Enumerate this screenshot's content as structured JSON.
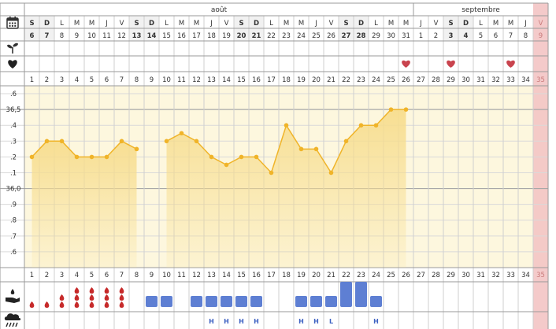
{
  "months": [
    {
      "label": "août"
    },
    {
      "label": "septembre"
    }
  ],
  "weekday_letters": [
    "S",
    "D",
    "L",
    "M",
    "M",
    "J",
    "V",
    "S",
    "D",
    "L",
    "M",
    "M",
    "J",
    "V",
    "S",
    "D",
    "L",
    "M",
    "M",
    "J",
    "V",
    "S",
    "D",
    "L",
    "M",
    "M",
    "J",
    "V",
    "S",
    "D",
    "L",
    "M",
    "M",
    "J",
    "V"
  ],
  "dates": [
    "6",
    "7",
    "8",
    "9",
    "10",
    "11",
    "12",
    "13",
    "14",
    "15",
    "16",
    "17",
    "18",
    "19",
    "20",
    "21",
    "22",
    "23",
    "24",
    "25",
    "26",
    "27",
    "28",
    "29",
    "30",
    "31",
    "1",
    "2",
    "3",
    "4",
    "5",
    "6",
    "7",
    "8",
    "9"
  ],
  "cycle_days": [
    "1",
    "2",
    "3",
    "4",
    "5",
    "6",
    "7",
    "8",
    "9",
    "10",
    "11",
    "12",
    "13",
    "14",
    "15",
    "16",
    "17",
    "18",
    "19",
    "20",
    "21",
    "22",
    "23",
    "24",
    "25",
    "26",
    "27",
    "28",
    "29",
    "30",
    "31",
    "32",
    "33",
    "34",
    "35"
  ],
  "hearts_on_days": [
    26,
    29,
    33
  ],
  "row_icons": {
    "calendar": "calendar-icon",
    "plant": "sprout-icon",
    "heart": "heart-icon",
    "bleeding": "hand-drop-icon",
    "mucus": "cloud-rain-icon"
  },
  "temperature_axis": {
    "labels": [
      ".6",
      "36,5",
      ".4",
      ".3",
      ".2",
      ".1",
      "36,0",
      ".9",
      ".8",
      ".7",
      ".6"
    ],
    "values": [
      36.6,
      36.5,
      36.4,
      36.3,
      36.2,
      36.1,
      36.0,
      35.9,
      35.8,
      35.7,
      35.6
    ],
    "min": 35.5,
    "max": 36.65
  },
  "chart_data": {
    "type": "line",
    "x": [
      1,
      2,
      3,
      4,
      5,
      6,
      7,
      8,
      10,
      11,
      12,
      13,
      14,
      15,
      16,
      17,
      18,
      19,
      20,
      21,
      22,
      23,
      24,
      25,
      26
    ],
    "series": [
      {
        "values": [
          36.2,
          36.3,
          36.3,
          36.2,
          36.2,
          36.2,
          36.3,
          36.25,
          36.3,
          36.35,
          36.3,
          36.2,
          36.15,
          36.2,
          36.2,
          36.1,
          36.4,
          36.25,
          36.25,
          36.1,
          36.3,
          36.4,
          36.4,
          36.5,
          36.5
        ]
      }
    ],
    "segments": [
      [
        1,
        8
      ],
      [
        10,
        26
      ]
    ],
    "ylim": [
      35.5,
      36.65
    ],
    "grid": true
  },
  "bleeding": [
    {
      "day": 1,
      "drops": 1
    },
    {
      "day": 2,
      "drops": 1
    },
    {
      "day": 3,
      "drops": 2
    },
    {
      "day": 4,
      "drops": 3
    },
    {
      "day": 5,
      "drops": 3
    },
    {
      "day": 6,
      "drops": 3
    },
    {
      "day": 7,
      "drops": 3
    }
  ],
  "mucus": [
    {
      "day": 9,
      "level": 1,
      "code": ""
    },
    {
      "day": 10,
      "level": 1,
      "code": ""
    },
    {
      "day": 12,
      "level": 1,
      "code": ""
    },
    {
      "day": 13,
      "level": 1,
      "code": "H"
    },
    {
      "day": 14,
      "level": 1,
      "code": "H"
    },
    {
      "day": 15,
      "level": 1,
      "code": "H"
    },
    {
      "day": 16,
      "level": 1,
      "code": "H"
    },
    {
      "day": 19,
      "level": 1,
      "code": "H"
    },
    {
      "day": 20,
      "level": 1,
      "code": "H"
    },
    {
      "day": 21,
      "level": 1,
      "code": "L"
    },
    {
      "day": 22,
      "level": 2,
      "code": ""
    },
    {
      "day": 23,
      "level": 2,
      "code": ""
    },
    {
      "day": 24,
      "level": 1,
      "code": "H"
    }
  ],
  "colors": {
    "line": "#f0b429",
    "fill": "#f7dd8e",
    "panel_bg": "#fdf7de",
    "hearts": "#c9444e",
    "drops": "#c62a2a",
    "mucus_box": "#5e7fd3",
    "future_highlight": "#f3c4c4",
    "grid": "#cfcfcf"
  }
}
